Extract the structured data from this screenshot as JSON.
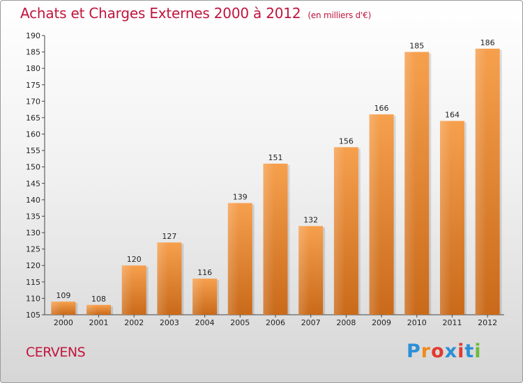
{
  "header": {
    "title": "Achats et Charges Externes 2000 à 2012",
    "unit": "(en milliers d'€)"
  },
  "footer": {
    "commune": "CERVENS",
    "logo_text": "Proxiti",
    "logo_colors": [
      "#2b8fd6",
      "#f08a1c",
      "#e23a2f",
      "#2b8fd6",
      "#e23a2f",
      "#2b8fd6",
      "#6cbb3c"
    ]
  },
  "colors": {
    "accent": "#c0143c",
    "bar_light": "#f6a04e",
    "bar_dark": "#c96a1a"
  },
  "chart_data": {
    "type": "bar",
    "categories": [
      "2000",
      "2001",
      "2002",
      "2003",
      "2004",
      "2005",
      "2006",
      "2007",
      "2008",
      "2009",
      "2010",
      "2011",
      "2012"
    ],
    "values": [
      109,
      108,
      120,
      127,
      116,
      139,
      151,
      132,
      156,
      166,
      185,
      164,
      186
    ],
    "ylim": [
      105,
      190
    ],
    "ytick_step": 5,
    "grid": false
  }
}
